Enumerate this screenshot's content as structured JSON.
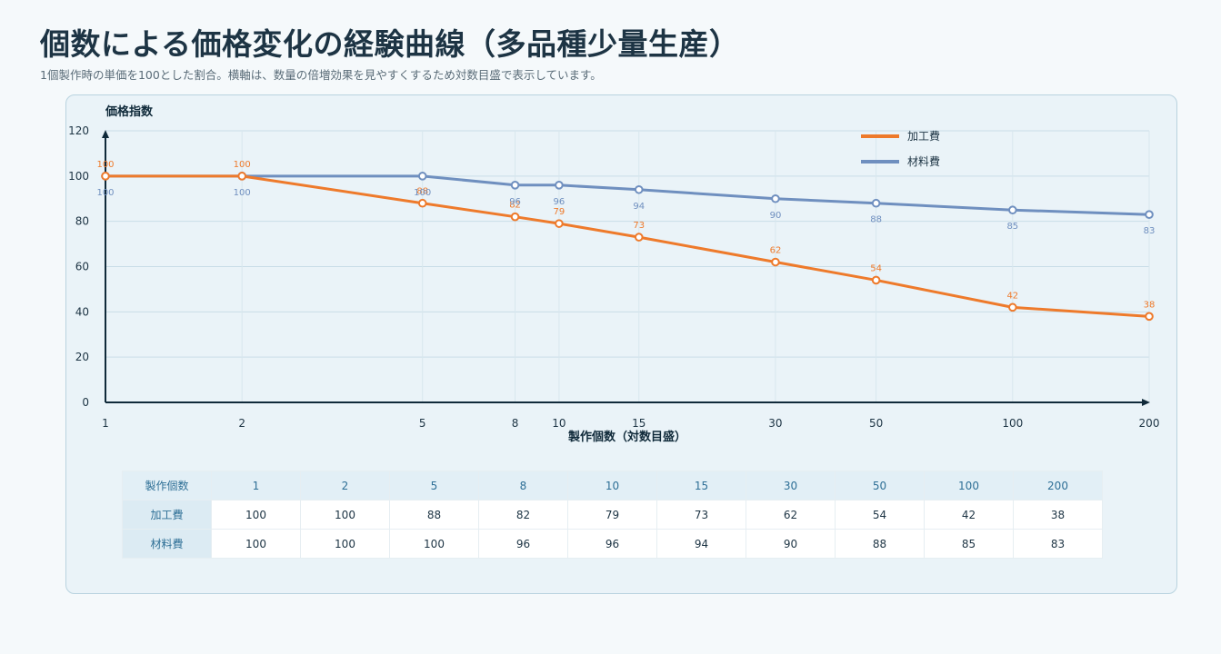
{
  "header": {
    "title": "個数による価格変化の経験曲線（多品種少量生産）",
    "subtitle": "1個製作時の単価を100とした割合。横軸は、数量の倍増効果を見やすくするため対数目盛で表示しています。"
  },
  "chart_data": {
    "type": "line",
    "x": [
      1,
      2,
      5,
      8,
      10,
      15,
      30,
      50,
      100,
      200
    ],
    "x_scale": "log",
    "xlabel": "製作個数（対数目盛）",
    "ylabel": "価格指数",
    "ylim": [
      0,
      120
    ],
    "yticks": [
      0,
      20,
      40,
      60,
      80,
      100,
      120
    ],
    "grid": true,
    "legend": "top-right",
    "series": [
      {
        "name": "加工費",
        "color": "#ee7a2b",
        "values": [
          100,
          100,
          88,
          82,
          79,
          73,
          62,
          54,
          42,
          38
        ]
      },
      {
        "name": "材料費",
        "color": "#6f8fbf",
        "values": [
          100,
          100,
          100,
          96,
          96,
          94,
          90,
          88,
          85,
          83
        ]
      }
    ]
  },
  "table": {
    "header_label": "製作個数",
    "columns": [
      "1",
      "2",
      "5",
      "8",
      "10",
      "15",
      "30",
      "50",
      "100",
      "200"
    ],
    "rows": [
      {
        "label": "加工費",
        "values": [
          "100",
          "100",
          "88",
          "82",
          "79",
          "73",
          "62",
          "54",
          "42",
          "38"
        ]
      },
      {
        "label": "材料費",
        "values": [
          "100",
          "100",
          "100",
          "96",
          "96",
          "94",
          "90",
          "88",
          "85",
          "83"
        ]
      }
    ]
  }
}
